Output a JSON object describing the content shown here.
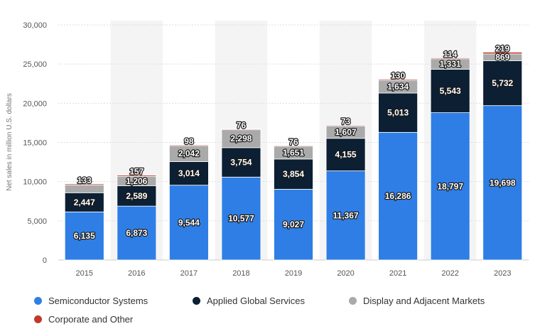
{
  "chart_data": {
    "type": "bar",
    "stacked": true,
    "categories": [
      "2015",
      "2016",
      "2017",
      "2018",
      "2019",
      "2020",
      "2021",
      "2022",
      "2023"
    ],
    "series": [
      {
        "name": "Semiconductor Systems",
        "color": "#2f7ee6",
        "values": [
          6135,
          6873,
          9544,
          10577,
          9027,
          11367,
          16286,
          18797,
          19698
        ],
        "labels": [
          "6,135",
          "6,873",
          "9,544",
          "10,577",
          "9,027",
          "11,367",
          "16,286",
          "18,797",
          "19,698"
        ]
      },
      {
        "name": "Applied Global Services",
        "color": "#0c1f33",
        "values": [
          2447,
          2589,
          3014,
          3754,
          3854,
          4155,
          5013,
          5543,
          5732
        ],
        "labels": [
          "2,447",
          "2,589",
          "3,014",
          "3,754",
          "3,854",
          "4,155",
          "5,013",
          "5,543",
          "5,732"
        ]
      },
      {
        "name": "Display and Adjacent Markets",
        "color": "#aaaaaa",
        "values": [
          1000,
          1206,
          2042,
          2298,
          1651,
          1607,
          1634,
          1331,
          869
        ],
        "labels": [
          "",
          "1,206",
          "2,042",
          "2,298",
          "1,651",
          "1,607",
          "1,634",
          "1,331",
          "869"
        ]
      },
      {
        "name": "Corporate and Other",
        "color": "#c0392b",
        "values": [
          133,
          157,
          98,
          76,
          76,
          73,
          130,
          114,
          219
        ],
        "labels": [
          "133",
          "157",
          "98",
          "76",
          "76",
          "73",
          "130",
          "114",
          "219"
        ]
      }
    ],
    "ylabel": "Net sales in million U.S. dollars",
    "xlabel": "",
    "ylim": [
      0,
      30000
    ],
    "yticks": [
      0,
      5000,
      10000,
      15000,
      20000,
      25000,
      30000
    ],
    "ytick_labels": [
      "0",
      "5,000",
      "10,000",
      "15,000",
      "20,000",
      "25,000",
      "30,000"
    ],
    "grid": true,
    "legend_position": "bottom"
  }
}
